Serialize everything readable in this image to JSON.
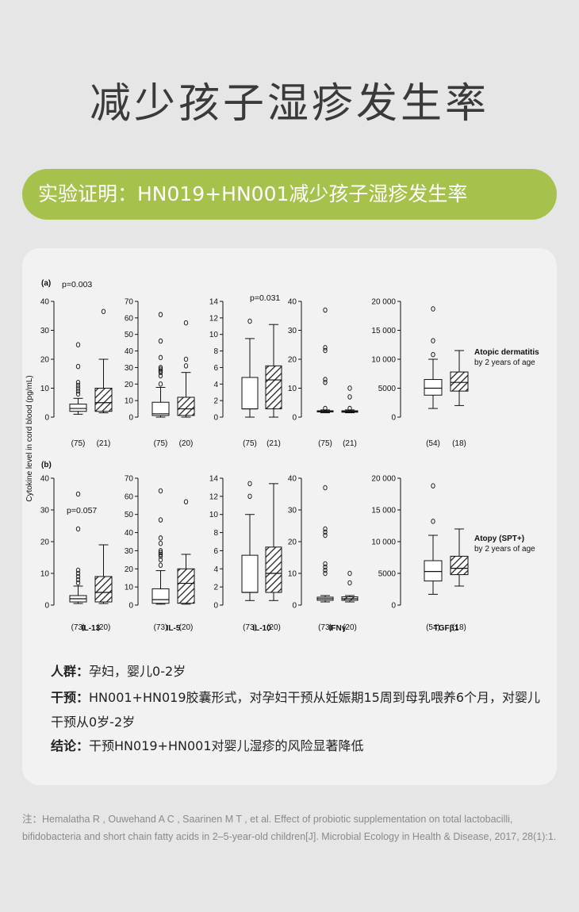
{
  "page": {
    "title": "减少孩子湿疹发生率",
    "banner": "实验证明：HN019+HN001减少孩子湿疹发生率",
    "info": [
      {
        "label": "人群：",
        "text": "孕妇，婴儿0-2岁"
      },
      {
        "label": "干预：",
        "text": "HN001+HN019胶囊形式，对孕妇干预从妊娠期15周到母乳喂养6个月，对婴儿"
      },
      {
        "label": "",
        "text": "干预从0岁-2岁"
      },
      {
        "label": "结论：",
        "text": "干预HN019+HN001对婴儿湿疹的风险显著降低"
      }
    ],
    "note": "注：Hemalatha R , Ouwehand A C , Saarinen M T , et al. Effect of probiotic supplementation on total lactobacilli, bifidobacteria and short chain fatty acids in 2–5-year-old children[J]. Microbial Ecology in Health & Disease, 2017, 28(1):1."
  },
  "chart_data": {
    "type": "box",
    "ylabel": "Cytokine level in cord blood (pg/mL)",
    "categories": [
      "IL-13",
      "IL-5",
      "IL-10",
      "IFNγ",
      "TGFβ1"
    ],
    "panels": [
      {
        "label": "(a)",
        "condition": "Atopic dermatitis",
        "condition_sub": "by 2 years of age",
        "groups": [
          {
            "axis": {
              "min": 0,
              "max": 40,
              "ticks": [
                "0",
                "10",
                "20",
                "30",
                "40"
              ],
              "tickvals": [
                0,
                10,
                20,
                30,
                40
              ]
            },
            "pvalue": "p=0.003",
            "boxes": [
              {
                "n": "(75)",
                "min": 1,
                "q1": 2,
                "med": 3,
                "q3": 4.5,
                "max": 6.5,
                "outliers": [
                  8,
                  9,
                  10,
                  11,
                  12,
                  17.5,
                  25
                ],
                "hatched": false
              },
              {
                "n": "(21)",
                "min": 1.5,
                "q1": 2,
                "med": 5,
                "q3": 10,
                "max": 20,
                "outliers": [
                  36.5
                ],
                "hatched": true
              }
            ]
          },
          {
            "axis": {
              "min": 0,
              "max": 70,
              "ticks": [
                "0",
                "10",
                "20",
                "30",
                "40",
                "50",
                "60",
                "70"
              ],
              "tickvals": [
                0,
                10,
                20,
                30,
                40,
                50,
                60,
                70
              ]
            },
            "pvalue": "",
            "boxes": [
              {
                "n": "(75)",
                "min": 0,
                "q1": 1,
                "med": 2,
                "q3": 9,
                "max": 18,
                "outliers": [
                  20,
                  25,
                  27,
                  28,
                  29,
                  30,
                  36,
                  46,
                  62
                ],
                "hatched": false
              },
              {
                "n": "(20)",
                "min": 0,
                "q1": 1,
                "med": 5,
                "q3": 12,
                "max": 27,
                "outliers": [
                  31,
                  35,
                  57
                ],
                "hatched": true
              }
            ]
          },
          {
            "axis": {
              "min": 0,
              "max": 14,
              "ticks": [
                "0",
                "2",
                "4",
                "6",
                "8",
                "10",
                "12",
                "14"
              ],
              "tickvals": [
                0,
                2,
                4,
                6,
                8,
                10,
                12,
                14
              ]
            },
            "pvalue": "p=0.031",
            "boxes": [
              {
                "n": "(75)",
                "min": 0,
                "q1": 1,
                "med": 1,
                "q3": 4.8,
                "max": 9.5,
                "outliers": [
                  11.6
                ],
                "hatched": false
              },
              {
                "n": "(21)",
                "min": 0,
                "q1": 1,
                "med": 4.5,
                "q3": 6.2,
                "max": 11.2,
                "outliers": [],
                "hatched": true
              }
            ]
          },
          {
            "axis": {
              "min": 0,
              "max": 40,
              "ticks": [
                "0",
                "10",
                "20",
                "30",
                "40"
              ],
              "tickvals": [
                0,
                10,
                20,
                30,
                40
              ]
            },
            "pvalue": "",
            "boxes": [
              {
                "n": "(75)",
                "min": 1.5,
                "q1": 1.8,
                "med": 2,
                "q3": 2.2,
                "max": 2.5,
                "outliers": [
                  3,
                  12,
                  13,
                  23,
                  24,
                  37
                ],
                "hatched": false
              },
              {
                "n": "(21)",
                "min": 1.5,
                "q1": 1.7,
                "med": 1.9,
                "q3": 2.2,
                "max": 2.5,
                "outliers": [
                  3,
                  7,
                  10
                ],
                "hatched": true
              }
            ]
          },
          {
            "axis": {
              "min": 0,
              "max": 20000,
              "ticks": [
                "0",
                "5000",
                "10 000",
                "15 000",
                "20 000"
              ],
              "tickvals": [
                0,
                5000,
                10000,
                15000,
                20000
              ]
            },
            "pvalue": "",
            "boxes": [
              {
                "n": "(54)",
                "min": 1500,
                "q1": 3800,
                "med": 5000,
                "q3": 6500,
                "max": 10000,
                "outliers": [
                  10800,
                  13200,
                  18700
                ],
                "hatched": false
              },
              {
                "n": "(18)",
                "min": 2000,
                "q1": 4500,
                "med": 6000,
                "q3": 7800,
                "max": 11500,
                "outliers": [],
                "hatched": true
              }
            ]
          }
        ]
      },
      {
        "label": "(b)",
        "condition": "Atopy (SPT+)",
        "condition_sub": "by 2 years of age",
        "groups": [
          {
            "axis": {
              "min": 0,
              "max": 40,
              "ticks": [
                "0",
                "10",
                "20",
                "30",
                "40"
              ],
              "tickvals": [
                0,
                10,
                20,
                30,
                40
              ]
            },
            "pvalue": "p=0.057",
            "boxes": [
              {
                "n": "(73)",
                "min": 0.5,
                "q1": 1,
                "med": 2,
                "q3": 3,
                "max": 6,
                "outliers": [
                  7,
                  8,
                  9,
                  10,
                  11,
                  24,
                  35
                ],
                "hatched": false
              },
              {
                "n": "(20)",
                "min": 0.5,
                "q1": 1,
                "med": 4,
                "q3": 9,
                "max": 19,
                "outliers": [],
                "hatched": true
              }
            ]
          },
          {
            "axis": {
              "min": 0,
              "max": 70,
              "ticks": [
                "0",
                "10",
                "20",
                "30",
                "40",
                "50",
                "60",
                "70"
              ],
              "tickvals": [
                0,
                10,
                20,
                30,
                40,
                50,
                60,
                70
              ]
            },
            "pvalue": "",
            "boxes": [
              {
                "n": "(73)",
                "min": 0.5,
                "q1": 1,
                "med": 3,
                "q3": 9,
                "max": 19,
                "outliers": [
                  22,
                  25,
                  27,
                  28,
                  29,
                  30,
                  34,
                  37,
                  47,
                  63
                ],
                "hatched": false
              },
              {
                "n": "(20)",
                "min": 0.5,
                "q1": 1,
                "med": 12,
                "q3": 20,
                "max": 28,
                "outliers": [
                  57
                ],
                "hatched": true
              }
            ]
          },
          {
            "axis": {
              "min": 0,
              "max": 14,
              "ticks": [
                "0",
                "2",
                "4",
                "6",
                "8",
                "10",
                "12",
                "14"
              ],
              "tickvals": [
                0,
                2,
                4,
                6,
                8,
                10,
                12,
                14
              ]
            },
            "pvalue": "",
            "boxes": [
              {
                "n": "(73)",
                "min": 0.5,
                "q1": 1.4,
                "med": 1.4,
                "q3": 5.5,
                "max": 10,
                "outliers": [
                  12,
                  13.4
                ],
                "hatched": false
              },
              {
                "n": "(20)",
                "min": 0.5,
                "q1": 1.4,
                "med": 3.5,
                "q3": 6.4,
                "max": 13.4,
                "outliers": [],
                "hatched": true
              }
            ]
          },
          {
            "axis": {
              "min": 0,
              "max": 40,
              "ticks": [
                "0",
                "10",
                "20",
                "30",
                "40"
              ],
              "tickvals": [
                0,
                10,
                20,
                30,
                40
              ]
            },
            "pvalue": "",
            "boxes": [
              {
                "n": "(73)",
                "min": 1,
                "q1": 1.5,
                "med": 2,
                "q3": 2.5,
                "max": 3,
                "outliers": [
                  10,
                  11,
                  12,
                  13,
                  22,
                  23,
                  24,
                  37
                ],
                "hatched": false
              },
              {
                "n": "(20)",
                "min": 1,
                "q1": 1.5,
                "med": 2,
                "q3": 2.6,
                "max": 3,
                "outliers": [
                  7,
                  10
                ],
                "hatched": true
              }
            ]
          },
          {
            "axis": {
              "min": 0,
              "max": 20000,
              "ticks": [
                "0",
                "5000",
                "10 000",
                "15 000",
                "20 000"
              ],
              "tickvals": [
                0,
                5000,
                10000,
                15000,
                20000
              ]
            },
            "pvalue": "",
            "boxes": [
              {
                "n": "(54)",
                "min": 1700,
                "q1": 3800,
                "med": 5300,
                "q3": 7000,
                "max": 11000,
                "outliers": [
                  13200,
                  18800
                ],
                "hatched": false
              },
              {
                "n": "(18)",
                "min": 3000,
                "q1": 4800,
                "med": 5800,
                "q3": 7700,
                "max": 12000,
                "outliers": [],
                "hatched": true
              }
            ]
          }
        ]
      }
    ]
  }
}
